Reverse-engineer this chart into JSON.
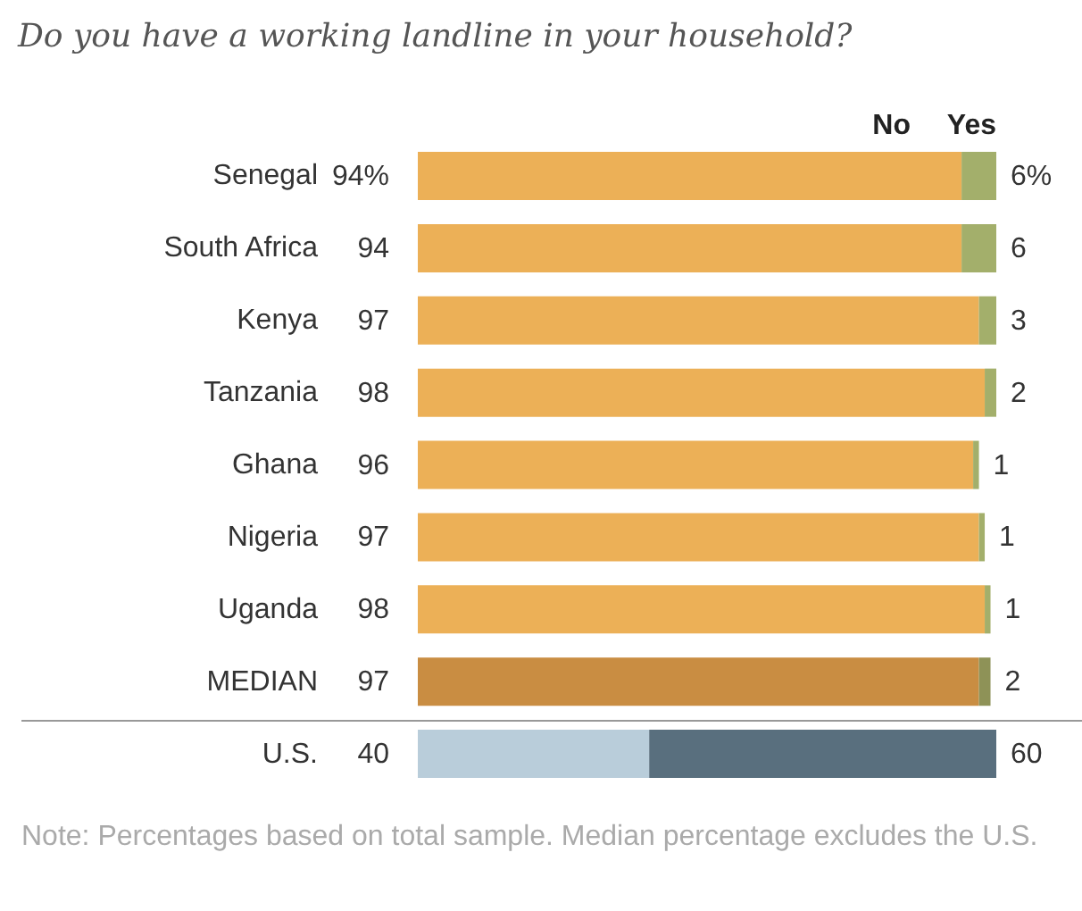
{
  "chart_data": {
    "type": "bar",
    "orientation": "horizontal",
    "stacked": true,
    "title": "Do you have a working landline in your household?",
    "categories": [
      "Senegal",
      "South Africa",
      "Kenya",
      "Tanzania",
      "Ghana",
      "Nigeria",
      "Uganda",
      "MEDIAN",
      "U.S."
    ],
    "series": [
      {
        "name": "No",
        "colors": [
          "#ecb057",
          "#ecb057",
          "#ecb057",
          "#ecb057",
          "#ecb057",
          "#ecb057",
          "#ecb057",
          "#c98d42",
          "#b9cdda"
        ],
        "values": [
          94,
          94,
          97,
          98,
          96,
          97,
          98,
          97,
          40
        ],
        "value_labels": [
          "94%",
          "94",
          "97",
          "98",
          "96",
          "97",
          "98",
          "97",
          "40"
        ]
      },
      {
        "name": "Yes",
        "colors": [
          "#a3af6b",
          "#a3af6b",
          "#a3af6b",
          "#a3af6b",
          "#a3af6b",
          "#a3af6b",
          "#a3af6b",
          "#8e9257",
          "#596f7e"
        ],
        "values": [
          6,
          6,
          3,
          2,
          1,
          1,
          1,
          2,
          60
        ],
        "value_labels": [
          "6%",
          "6",
          "3",
          "2",
          "1",
          "1",
          "1",
          "2",
          "60"
        ]
      }
    ],
    "annotations": [
      "Note: Percentages based on total sample. Median percentage excludes the U.S."
    ]
  }
}
